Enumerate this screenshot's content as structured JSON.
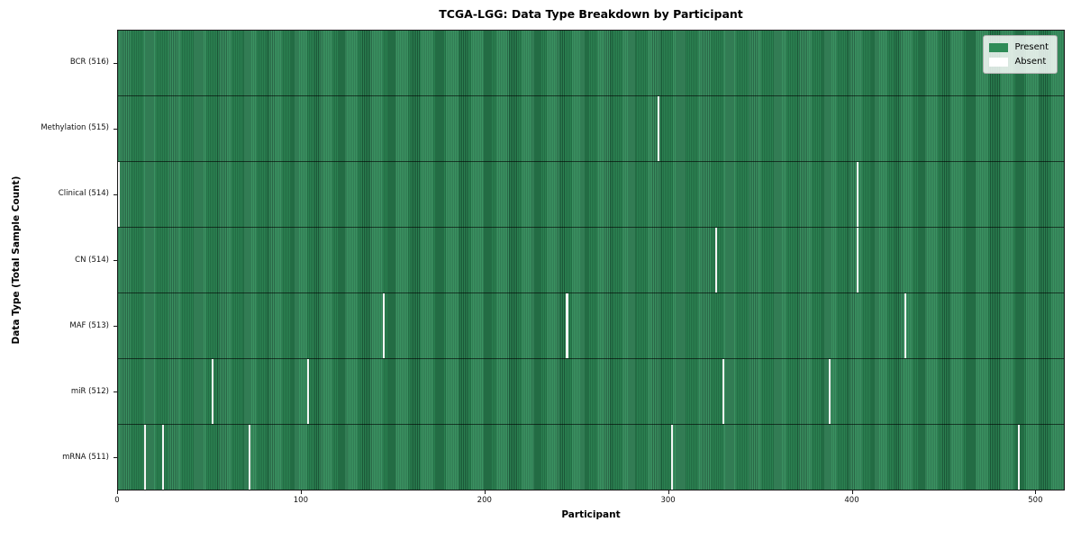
{
  "title": "TCGA-LGG: Data Type Breakdown by Participant",
  "xlabel": "Participant",
  "ylabel": "Data Type (Total Sample Count)",
  "legend": [
    {
      "label": "Present",
      "color": "#2e8b57"
    },
    {
      "label": "Absent",
      "color": "#ffffff"
    }
  ],
  "chart_data": {
    "type": "heatmap",
    "title": "TCGA-LGG: Data Type Breakdown by Participant",
    "xlabel": "Participant",
    "ylabel": "Data Type (Total Sample Count)",
    "legend_position": "upper right",
    "grid": false,
    "present_color": "#2e8b57",
    "absent_color": "#ffffff",
    "n_participants": 516,
    "xlim": [
      0,
      516
    ],
    "x_ticks": [
      0,
      100,
      200,
      300,
      400,
      500
    ],
    "rows": [
      {
        "label": "BCR (516)",
        "present_count": 516,
        "absent_participants": []
      },
      {
        "label": "Methylation (515)",
        "present_count": 515,
        "absent_participants": [
          294
        ]
      },
      {
        "label": "Clinical (514)",
        "present_count": 514,
        "absent_participants": [
          0,
          402
        ]
      },
      {
        "label": "CN (514)",
        "present_count": 514,
        "absent_participants": [
          325,
          402
        ]
      },
      {
        "label": "MAF (513)",
        "present_count": 513,
        "absent_participants": [
          144,
          244,
          428
        ]
      },
      {
        "label": "miR (512)",
        "present_count": 512,
        "absent_participants": [
          51,
          103,
          329,
          387
        ]
      },
      {
        "label": "mRNA (511)",
        "present_count": 511,
        "absent_participants": [
          14,
          24,
          71,
          301,
          490
        ]
      }
    ]
  }
}
